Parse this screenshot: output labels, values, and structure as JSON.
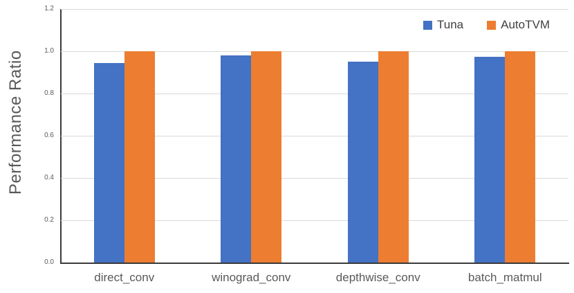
{
  "chart_data": {
    "type": "bar",
    "title": "",
    "categories": [
      "direct_conv",
      "winograd_conv",
      "depthwise_conv",
      "batch_matmul"
    ],
    "series": [
      {
        "name": "Tuna",
        "color": "#4472C4",
        "values": [
          0.945,
          0.98,
          0.95,
          0.975
        ]
      },
      {
        "name": "AutoTVM",
        "color": "#ED7D31",
        "values": [
          1.0,
          1.0,
          1.0,
          1.0
        ]
      }
    ],
    "xlabel": "",
    "ylabel": "Performance Ratio",
    "ylim": [
      0.0,
      1.2
    ],
    "yticks": [
      "0.0",
      "0.2",
      "0.4",
      "0.6",
      "0.8",
      "1.0",
      "1.2"
    ],
    "grid": true,
    "legend_position": "top-right"
  },
  "colors": {
    "background": "#FFFFFF",
    "axis_line": "#3A3A3A",
    "gridline": "#D9D9D9",
    "tick_label": "#595959",
    "category_label": "#595959",
    "legend_label": "#404040",
    "axis_title": "#595959",
    "series_tuna": "#4472C4",
    "series_autotvm": "#ED7D31"
  }
}
